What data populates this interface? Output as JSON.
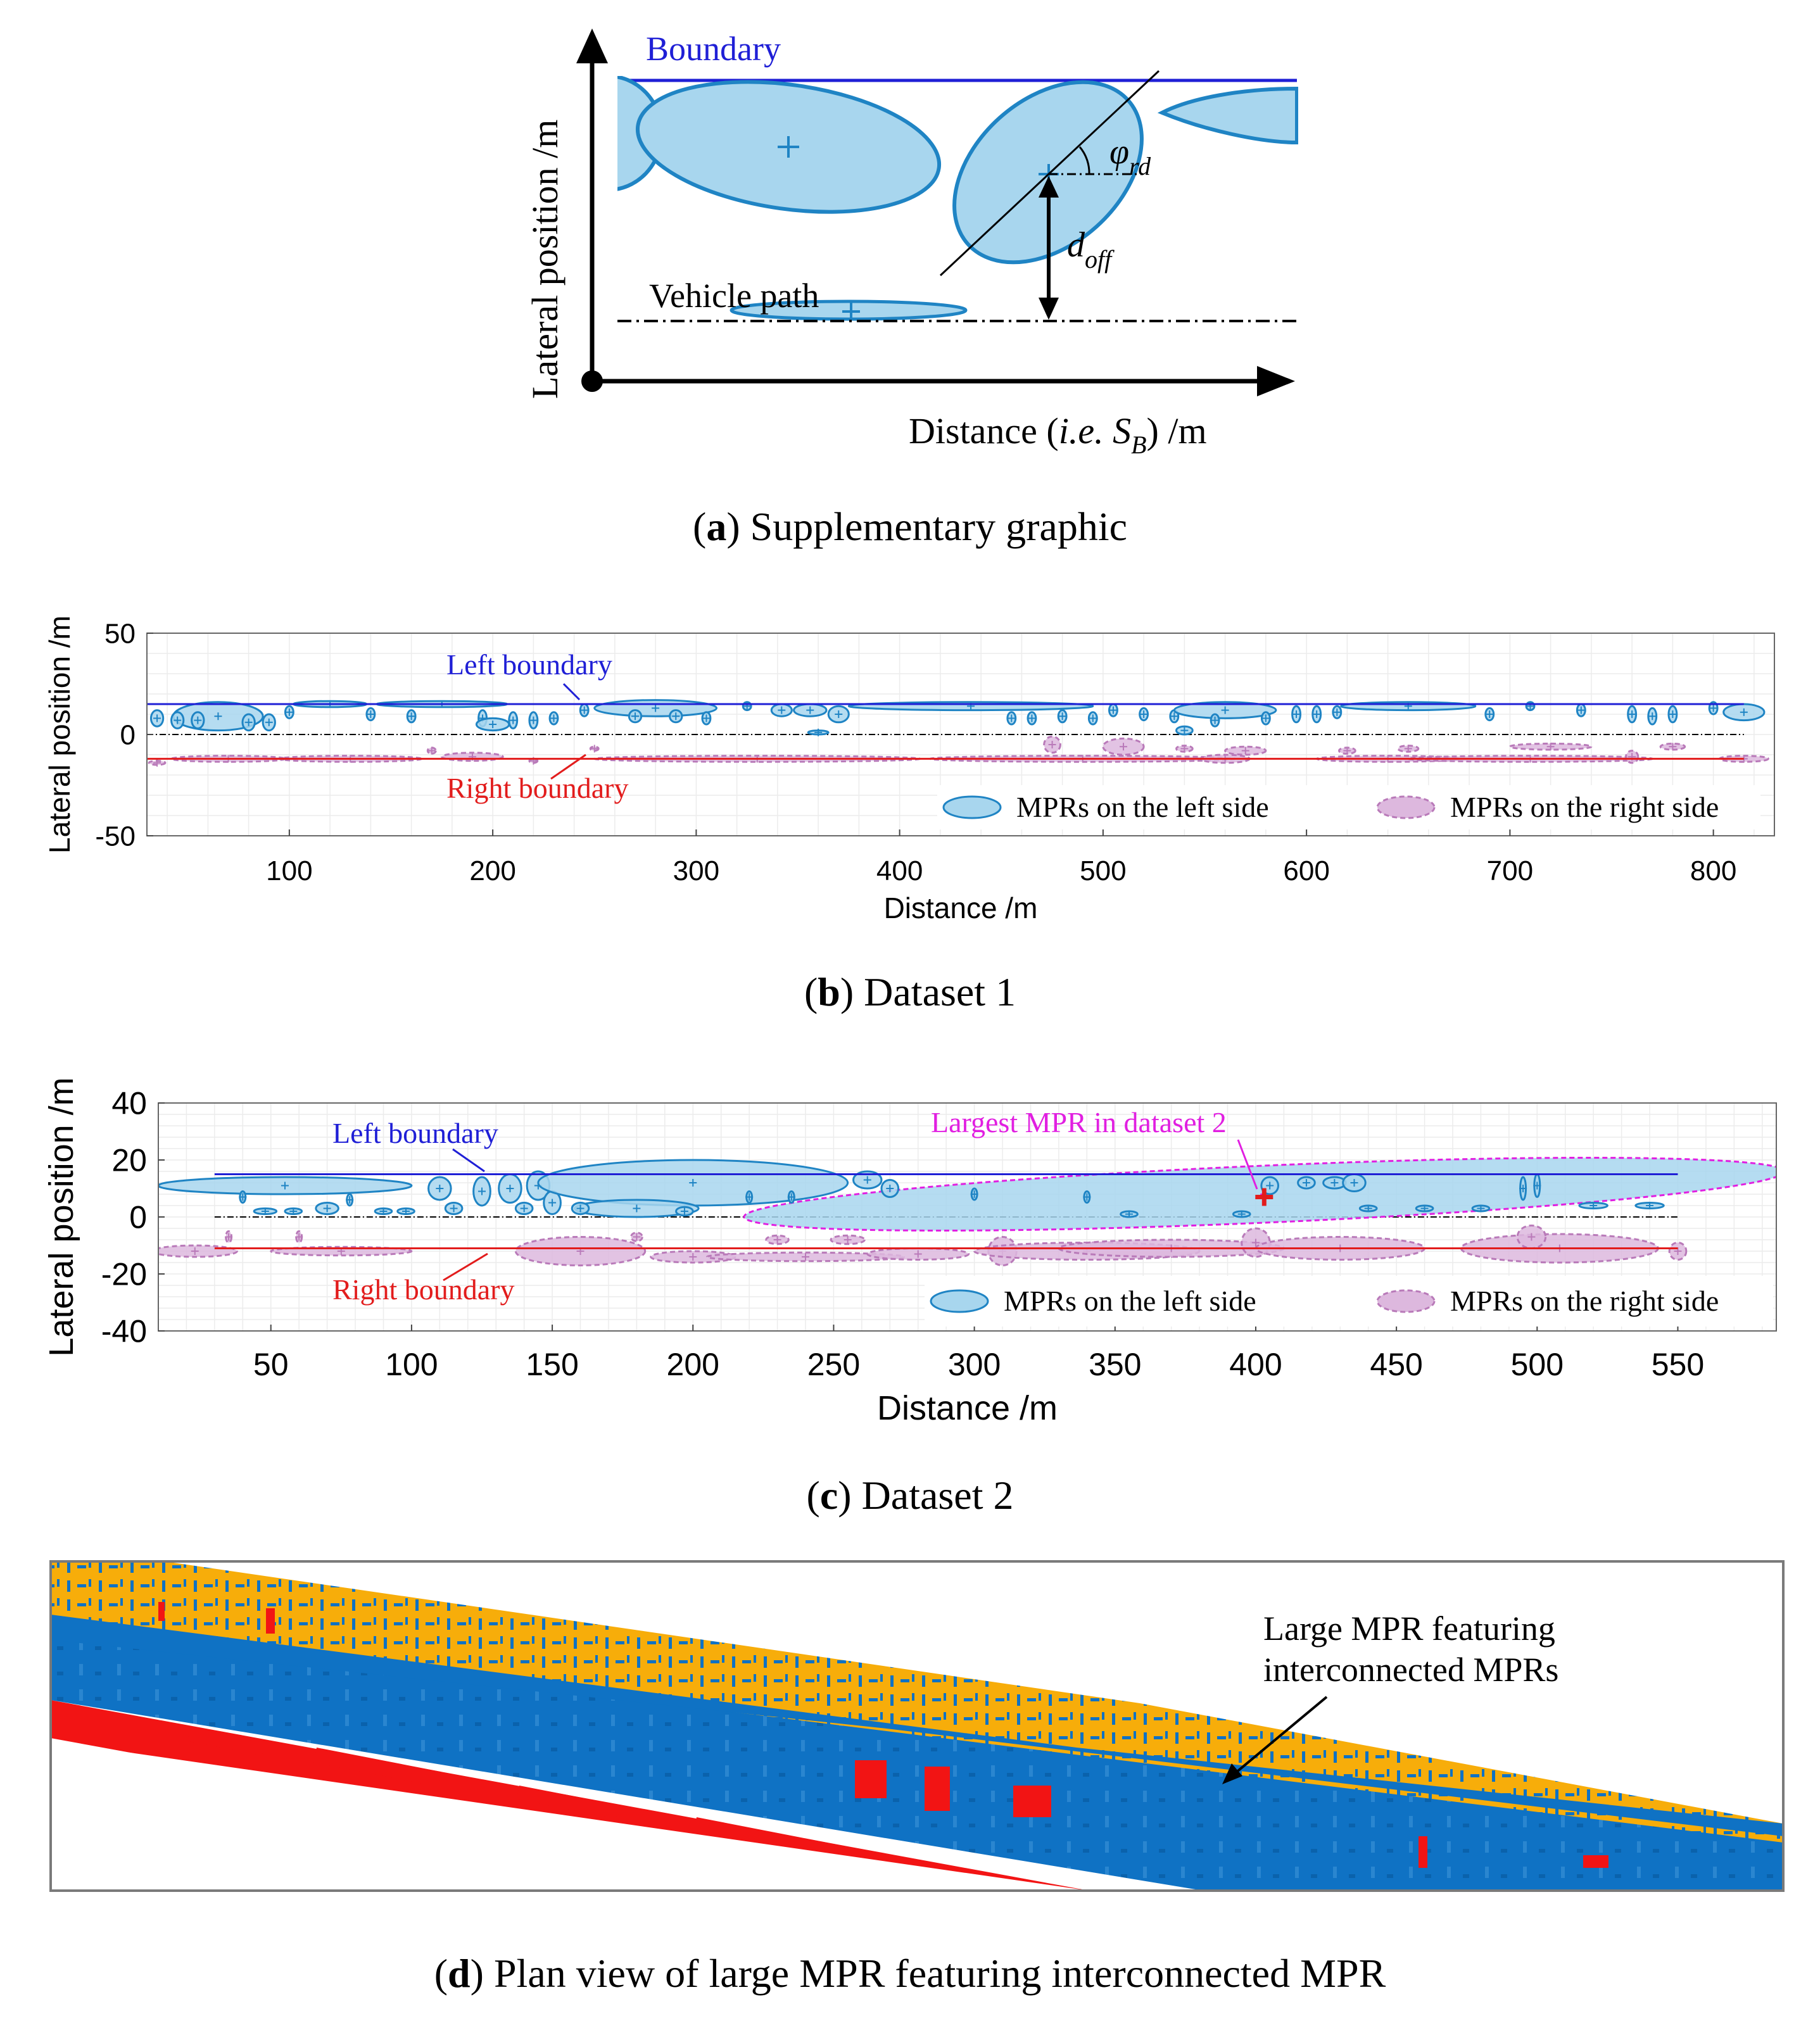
{
  "colors": {
    "left_fill": "#a8d6ee",
    "left_stroke": "#1f84c4",
    "right_fill": "#ddb8de",
    "right_stroke": "#b97ab9",
    "left_boundary": "#1f1fd6",
    "right_boundary": "#e21c1c",
    "magenta": "#e11fe1",
    "plan_blue": "#0f72c4",
    "plan_orange": "#f7ad0a",
    "plan_red": "#f21414"
  },
  "panel_a": {
    "boundary_label": "Boundary",
    "vehicle_path_label": "Vehicle path",
    "angle_symbol": "φ",
    "angle_subscript": "rd",
    "offset_symbol": "d",
    "offset_subscript": "off",
    "y_axis_label": "Lateral position /m",
    "x_axis_label_prefix": "Distance (",
    "x_axis_label_ie": "i.e.",
    "x_axis_label_S": "S",
    "x_axis_label_sub": "B",
    "x_axis_label_suffix": ") /m",
    "caption_letter": "a",
    "caption_text": " Supplementary graphic"
  },
  "chart_data": [
    {
      "type": "scatter",
      "title": "Dataset 1",
      "xlabel": "Distance /m",
      "ylabel": "Lateral position /m",
      "xlim": [
        30,
        830
      ],
      "ylim": [
        -50,
        50
      ],
      "xticks": [
        100,
        200,
        300,
        400,
        500,
        600,
        700,
        800
      ],
      "yticks": [
        -50,
        0,
        50
      ],
      "grid": true,
      "left_boundary": {
        "x": [
          30,
          815
        ],
        "y": 15
      },
      "right_boundary": {
        "x": [
          30,
          815
        ],
        "y": -12
      },
      "vehicle_path": {
        "y": 0
      },
      "annotations": {
        "left_boundary_label": "Left boundary",
        "right_boundary_label": "Right boundary"
      },
      "legend": {
        "left": "MPRs on the left side",
        "right": "MPRs on the right side",
        "position": "bottom-right"
      },
      "left_mprs": [
        {
          "cx": 65,
          "cy": 9,
          "rx": 22,
          "ry": 7
        },
        {
          "cx": 35,
          "cy": 8,
          "rx": 3,
          "ry": 4
        },
        {
          "cx": 45,
          "cy": 7,
          "rx": 3,
          "ry": 4
        },
        {
          "cx": 55,
          "cy": 7,
          "rx": 3,
          "ry": 4
        },
        {
          "cx": 80,
          "cy": 6,
          "rx": 3,
          "ry": 4
        },
        {
          "cx": 90,
          "cy": 6,
          "rx": 3,
          "ry": 4
        },
        {
          "cx": 100,
          "cy": 11,
          "rx": 2,
          "ry": 3
        },
        {
          "cx": 120,
          "cy": 15,
          "rx": 18,
          "ry": 1.5
        },
        {
          "cx": 140,
          "cy": 10,
          "rx": 2,
          "ry": 3
        },
        {
          "cx": 160,
          "cy": 9,
          "rx": 2,
          "ry": 3
        },
        {
          "cx": 175,
          "cy": 15,
          "rx": 32,
          "ry": 1.5
        },
        {
          "cx": 195,
          "cy": 8,
          "rx": 2,
          "ry": 4
        },
        {
          "cx": 200,
          "cy": 5,
          "rx": 8,
          "ry": 3
        },
        {
          "cx": 210,
          "cy": 7,
          "rx": 2,
          "ry": 4
        },
        {
          "cx": 220,
          "cy": 7,
          "rx": 2,
          "ry": 4
        },
        {
          "cx": 230,
          "cy": 8,
          "rx": 2,
          "ry": 3
        },
        {
          "cx": 245,
          "cy": 12,
          "rx": 2,
          "ry": 3
        },
        {
          "cx": 280,
          "cy": 13,
          "rx": 30,
          "ry": 4
        },
        {
          "cx": 270,
          "cy": 9,
          "rx": 3,
          "ry": 3
        },
        {
          "cx": 290,
          "cy": 9,
          "rx": 3,
          "ry": 3
        },
        {
          "cx": 305,
          "cy": 8,
          "rx": 2,
          "ry": 3
        },
        {
          "cx": 325,
          "cy": 14,
          "rx": 2,
          "ry": 2
        },
        {
          "cx": 342,
          "cy": 12,
          "rx": 5,
          "ry": 3
        },
        {
          "cx": 356,
          "cy": 12,
          "rx": 8,
          "ry": 3
        },
        {
          "cx": 370,
          "cy": 10,
          "rx": 5,
          "ry": 4
        },
        {
          "cx": 360,
          "cy": 1,
          "rx": 5,
          "ry": 1
        },
        {
          "cx": 435,
          "cy": 14,
          "rx": 60,
          "ry": 2
        },
        {
          "cx": 455,
          "cy": 8,
          "rx": 2,
          "ry": 3
        },
        {
          "cx": 465,
          "cy": 8,
          "rx": 2,
          "ry": 3
        },
        {
          "cx": 480,
          "cy": 9,
          "rx": 2,
          "ry": 3
        },
        {
          "cx": 495,
          "cy": 8,
          "rx": 2,
          "ry": 3
        },
        {
          "cx": 505,
          "cy": 12,
          "rx": 2,
          "ry": 3
        },
        {
          "cx": 520,
          "cy": 10,
          "rx": 2,
          "ry": 3
        },
        {
          "cx": 535,
          "cy": 9,
          "rx": 2,
          "ry": 3
        },
        {
          "cx": 540,
          "cy": 2,
          "rx": 4,
          "ry": 2
        },
        {
          "cx": 560,
          "cy": 12,
          "rx": 25,
          "ry": 4
        },
        {
          "cx": 555,
          "cy": 7,
          "rx": 2,
          "ry": 3
        },
        {
          "cx": 580,
          "cy": 8,
          "rx": 2,
          "ry": 3
        },
        {
          "cx": 595,
          "cy": 10,
          "rx": 2,
          "ry": 4
        },
        {
          "cx": 605,
          "cy": 10,
          "rx": 2,
          "ry": 4
        },
        {
          "cx": 615,
          "cy": 11,
          "rx": 2,
          "ry": 3
        },
        {
          "cx": 650,
          "cy": 14,
          "rx": 33,
          "ry": 2
        },
        {
          "cx": 690,
          "cy": 10,
          "rx": 2,
          "ry": 3
        },
        {
          "cx": 710,
          "cy": 14,
          "rx": 2,
          "ry": 2
        },
        {
          "cx": 735,
          "cy": 12,
          "rx": 2,
          "ry": 3
        },
        {
          "cx": 760,
          "cy": 10,
          "rx": 2,
          "ry": 4
        },
        {
          "cx": 770,
          "cy": 9,
          "rx": 2,
          "ry": 4
        },
        {
          "cx": 780,
          "cy": 10,
          "rx": 2,
          "ry": 4
        },
        {
          "cx": 800,
          "cy": 13,
          "rx": 2,
          "ry": 3
        },
        {
          "cx": 815,
          "cy": 11,
          "rx": 10,
          "ry": 4
        }
      ],
      "right_mprs": [
        {
          "cx": 35,
          "cy": -14,
          "rx": 4,
          "ry": 1
        },
        {
          "cx": 70,
          "cy": -12,
          "rx": 28,
          "ry": 1.5
        },
        {
          "cx": 130,
          "cy": -12,
          "rx": 35,
          "ry": 1.5
        },
        {
          "cx": 170,
          "cy": -8,
          "rx": 2,
          "ry": 1.5
        },
        {
          "cx": 190,
          "cy": -11,
          "rx": 15,
          "ry": 2
        },
        {
          "cx": 220,
          "cy": -13,
          "rx": 2,
          "ry": 1
        },
        {
          "cx": 250,
          "cy": -7,
          "rx": 2,
          "ry": 1
        },
        {
          "cx": 330,
          "cy": -12,
          "rx": 80,
          "ry": 1.5
        },
        {
          "cx": 475,
          "cy": -5,
          "rx": 4,
          "ry": 4
        },
        {
          "cx": 490,
          "cy": -12,
          "rx": 75,
          "ry": 1.5
        },
        {
          "cx": 510,
          "cy": -6,
          "rx": 10,
          "ry": 4
        },
        {
          "cx": 540,
          "cy": -7,
          "rx": 4,
          "ry": 1.5
        },
        {
          "cx": 570,
          "cy": -8,
          "rx": 10,
          "ry": 2
        },
        {
          "cx": 560,
          "cy": -12,
          "rx": 12,
          "ry": 2
        },
        {
          "cx": 620,
          "cy": -8,
          "rx": 4,
          "ry": 1.5
        },
        {
          "cx": 650,
          "cy": -7,
          "rx": 5,
          "ry": 1.5
        },
        {
          "cx": 640,
          "cy": -12,
          "rx": 35,
          "ry": 1.5
        },
        {
          "cx": 710,
          "cy": -12,
          "rx": 60,
          "ry": 1.5
        },
        {
          "cx": 720,
          "cy": -6,
          "rx": 20,
          "ry": 1.5
        },
        {
          "cx": 780,
          "cy": -6,
          "rx": 6,
          "ry": 1.5
        },
        {
          "cx": 760,
          "cy": -11,
          "rx": 3,
          "ry": 3
        },
        {
          "cx": 815,
          "cy": -12,
          "rx": 12,
          "ry": 1.5
        }
      ]
    },
    {
      "type": "scatter",
      "title": "Dataset 2",
      "xlabel": "Distance /m",
      "ylabel": "Lateral position /m",
      "xlim": [
        10,
        585
      ],
      "ylim": [
        -40,
        40
      ],
      "xticks": [
        50,
        100,
        150,
        200,
        250,
        300,
        350,
        400,
        450,
        500,
        550
      ],
      "yticks": [
        -40,
        -20,
        0,
        20,
        40
      ],
      "grid": true,
      "left_boundary": {
        "x": [
          30,
          550
        ],
        "y": 15
      },
      "right_boundary": {
        "x": [
          30,
          550
        ],
        "y": -11
      },
      "vehicle_path": {
        "y": 0
      },
      "annotations": {
        "left_boundary_label": "Left boundary",
        "right_boundary_label": "Right boundary",
        "largest_mpr_label": "Largest MPR in dataset 2"
      },
      "largest_mpr_marker": {
        "x": 403,
        "y": 7
      },
      "legend": {
        "left": "MPRs on the left side",
        "right": "MPRs on the right side",
        "position": "bottom-right"
      },
      "left_mprs": [
        {
          "cx": 55,
          "cy": 11,
          "rx": 45,
          "ry": 3
        },
        {
          "cx": 110,
          "cy": 10,
          "rx": 4,
          "ry": 4
        },
        {
          "cx": 125,
          "cy": 9,
          "rx": 3,
          "ry": 5
        },
        {
          "cx": 135,
          "cy": 10,
          "rx": 4,
          "ry": 5
        },
        {
          "cx": 145,
          "cy": 11,
          "rx": 4,
          "ry": 5
        },
        {
          "cx": 40,
          "cy": 7,
          "rx": 1,
          "ry": 2
        },
        {
          "cx": 48,
          "cy": 2,
          "rx": 4,
          "ry": 1
        },
        {
          "cx": 58,
          "cy": 2,
          "rx": 3,
          "ry": 1
        },
        {
          "cx": 70,
          "cy": 3,
          "rx": 4,
          "ry": 2
        },
        {
          "cx": 78,
          "cy": 6,
          "rx": 1,
          "ry": 2
        },
        {
          "cx": 90,
          "cy": 2,
          "rx": 3,
          "ry": 1
        },
        {
          "cx": 98,
          "cy": 2,
          "rx": 3,
          "ry": 1
        },
        {
          "cx": 115,
          "cy": 3,
          "rx": 3,
          "ry": 2
        },
        {
          "cx": 140,
          "cy": 3,
          "rx": 3,
          "ry": 2
        },
        {
          "cx": 150,
          "cy": 5,
          "rx": 3,
          "ry": 4
        },
        {
          "cx": 200,
          "cy": 12,
          "rx": 55,
          "ry": 8
        },
        {
          "cx": 180,
          "cy": 3,
          "rx": 22,
          "ry": 3
        },
        {
          "cx": 197,
          "cy": 2,
          "rx": 3,
          "ry": 1.5
        },
        {
          "cx": 160,
          "cy": 3,
          "rx": 3,
          "ry": 2
        },
        {
          "cx": 220,
          "cy": 7,
          "rx": 1,
          "ry": 2
        },
        {
          "cx": 235,
          "cy": 7,
          "rx": 1,
          "ry": 2
        },
        {
          "cx": 262,
          "cy": 13,
          "rx": 5,
          "ry": 3
        },
        {
          "cx": 270,
          "cy": 10,
          "rx": 3,
          "ry": 3
        },
        {
          "cx": 300,
          "cy": 8,
          "rx": 1,
          "ry": 2
        },
        {
          "cx": 340,
          "cy": 7,
          "rx": 1,
          "ry": 2
        },
        {
          "cx": 355,
          "cy": 1,
          "rx": 3,
          "ry": 1
        },
        {
          "cx": 405,
          "cy": 11,
          "rx": 3,
          "ry": 3
        },
        {
          "cx": 418,
          "cy": 12,
          "rx": 3,
          "ry": 2
        },
        {
          "cx": 428,
          "cy": 12,
          "rx": 4,
          "ry": 2
        },
        {
          "cx": 435,
          "cy": 12,
          "rx": 4,
          "ry": 3
        },
        {
          "cx": 440,
          "cy": 3,
          "rx": 3,
          "ry": 1
        },
        {
          "cx": 460,
          "cy": 3,
          "rx": 3,
          "ry": 1
        },
        {
          "cx": 480,
          "cy": 3,
          "rx": 3,
          "ry": 1
        },
        {
          "cx": 495,
          "cy": 10,
          "rx": 1,
          "ry": 4
        },
        {
          "cx": 500,
          "cy": 11,
          "rx": 1,
          "ry": 4
        },
        {
          "cx": 520,
          "cy": 4,
          "rx": 5,
          "ry": 1
        },
        {
          "cx": 540,
          "cy": 4,
          "rx": 5,
          "ry": 1
        },
        {
          "cx": 395,
          "cy": 1,
          "rx": 3,
          "ry": 1
        }
      ],
      "left_largest_mpr": {
        "cx": 403,
        "cy": 8,
        "rx": 185,
        "ry": 10,
        "tilt_deg": -2.5
      },
      "right_mprs": [
        {
          "cx": 23,
          "cy": -12,
          "rx": 15,
          "ry": 2
        },
        {
          "cx": 35,
          "cy": -7,
          "rx": 1,
          "ry": 2
        },
        {
          "cx": 60,
          "cy": -7,
          "rx": 1,
          "ry": 2
        },
        {
          "cx": 75,
          "cy": -12,
          "rx": 25,
          "ry": 1.5
        },
        {
          "cx": 160,
          "cy": -12,
          "rx": 23,
          "ry": 5
        },
        {
          "cx": 180,
          "cy": -7,
          "rx": 2,
          "ry": 1.5
        },
        {
          "cx": 200,
          "cy": -14,
          "rx": 15,
          "ry": 2
        },
        {
          "cx": 240,
          "cy": -14,
          "rx": 35,
          "ry": 1.5
        },
        {
          "cx": 280,
          "cy": -13,
          "rx": 18,
          "ry": 2
        },
        {
          "cx": 310,
          "cy": -12,
          "rx": 5,
          "ry": 5
        },
        {
          "cx": 340,
          "cy": -12,
          "rx": 40,
          "ry": 3
        },
        {
          "cx": 370,
          "cy": -11,
          "rx": 40,
          "ry": 3
        },
        {
          "cx": 400,
          "cy": -9,
          "rx": 5,
          "ry": 5
        },
        {
          "cx": 430,
          "cy": -11,
          "rx": 30,
          "ry": 4
        },
        {
          "cx": 508,
          "cy": -11,
          "rx": 35,
          "ry": 5
        },
        {
          "cx": 498,
          "cy": -7,
          "rx": 5,
          "ry": 4
        },
        {
          "cx": 550,
          "cy": -12,
          "rx": 3,
          "ry": 3
        },
        {
          "cx": 230,
          "cy": -8,
          "rx": 4,
          "ry": 1.5
        },
        {
          "cx": 255,
          "cy": -8,
          "rx": 6,
          "ry": 1.5
        }
      ]
    }
  ],
  "captions": {
    "b_letter": "b",
    "b_text": " Dataset 1",
    "c_letter": "c",
    "c_text": " Dataset 2",
    "d_letter": "d",
    "d_text": " Plan view of large MPR featuring interconnected MPR"
  },
  "panel_d": {
    "annotation_line1": "Large MPR featuring",
    "annotation_line2": "interconnected MPRs"
  }
}
